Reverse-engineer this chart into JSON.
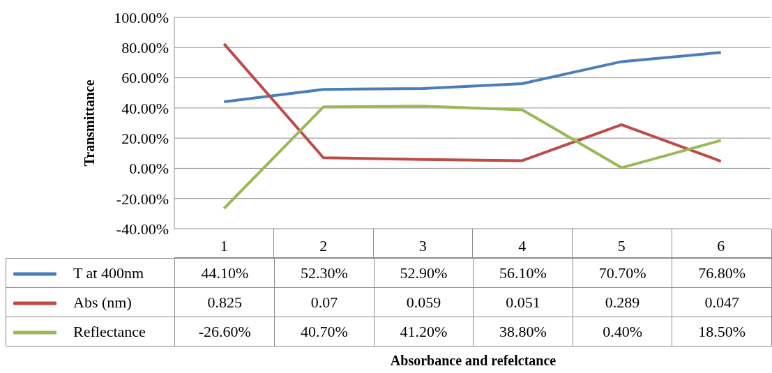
{
  "chart_data": {
    "type": "line",
    "annotations": [
      "Absorbance and refelctance"
    ],
    "ylabel": "Transmittance",
    "categories": [
      "1",
      "2",
      "3",
      "4",
      "5",
      "6"
    ],
    "series": [
      {
        "name": "T at 400nm",
        "color": "#4a7ebb",
        "values": [
          0.441,
          0.523,
          0.529,
          0.561,
          0.707,
          0.768
        ],
        "value_labels": [
          "44.10%",
          "52.30%",
          "52.90%",
          "56.10%",
          "70.70%",
          "76.80%"
        ]
      },
      {
        "name": "Abs (nm)",
        "color": "#be4b48",
        "values": [
          0.825,
          0.07,
          0.059,
          0.051,
          0.289,
          0.047
        ],
        "value_labels": [
          "0.825",
          "0.07",
          "0.059",
          "0.051",
          "0.289",
          "0.047"
        ]
      },
      {
        "name": "Reflectance",
        "color": "#98b954",
        "values": [
          -0.266,
          0.407,
          0.412,
          0.388,
          0.004,
          0.185
        ],
        "value_labels": [
          "-26.60%",
          "40.70%",
          "41.20%",
          "38.80%",
          "0.40%",
          "18.50%"
        ]
      }
    ],
    "ylim": [
      -0.4,
      1
    ],
    "yticks": [
      {
        "value": -0.4,
        "label": "-40.00%"
      },
      {
        "value": -0.2,
        "label": "-20.00%"
      },
      {
        "value": 0,
        "label": "0.00%"
      },
      {
        "value": 0.2,
        "label": "20.00%"
      },
      {
        "value": 0.4,
        "label": "40.00%"
      },
      {
        "value": 0.6,
        "label": "60.00%"
      },
      {
        "value": 0.8,
        "label": "80.00%"
      },
      {
        "value": 1,
        "label": "100.00%"
      }
    ],
    "grid": "y",
    "legend": "bottom",
    "marker": "none",
    "line_style": "solid"
  }
}
